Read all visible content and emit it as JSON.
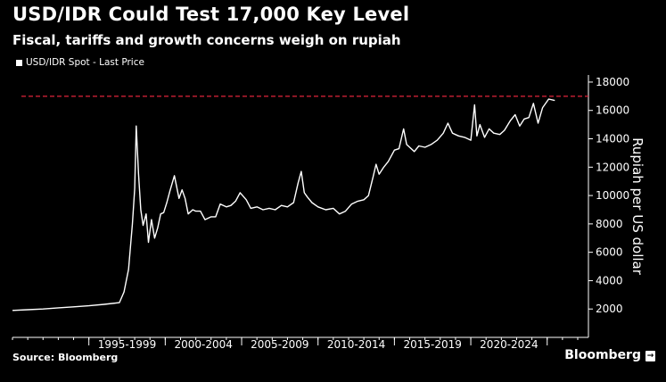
{
  "header": {
    "title": "USD/IDR Could Test 17,000 Key Level",
    "subtitle": "Fiscal, tariffs and growth concerns weigh on rupiah"
  },
  "footer": {
    "source": "Source: Bloomberg",
    "brand": "Bloomberg",
    "badge": "→"
  },
  "colors": {
    "background": "#000000",
    "line": "#ffffff",
    "reference_line": "#e0243a"
  },
  "chart_data": {
    "type": "line",
    "legend": [
      "USD/IDR Spot - Last Price"
    ],
    "ylabel": "Rupiah per US dollar",
    "xlabel": "",
    "ylim": [
      0,
      18500
    ],
    "yticks": [
      2000,
      4000,
      6000,
      8000,
      10000,
      12000,
      14000,
      16000,
      18000
    ],
    "ytick_labels": [
      "2000",
      "4000",
      "6000",
      "8000",
      "10000",
      "12000",
      "14000",
      "16000",
      "18000"
    ],
    "xlim": [
      1990.0,
      2027.7
    ],
    "x_categories": [
      {
        "label": "1995-1999",
        "start": 1995,
        "end": 2000
      },
      {
        "label": "2000-2004",
        "start": 2000,
        "end": 2005
      },
      {
        "label": "2005-2009",
        "start": 2005,
        "end": 2010
      },
      {
        "label": "2010-2014",
        "start": 2010,
        "end": 2015
      },
      {
        "label": "2015-2019",
        "start": 2015,
        "end": 2020
      },
      {
        "label": "2020-2024",
        "start": 2020,
        "end": 2025
      }
    ],
    "reference_line": {
      "y": 17000,
      "style": "dashed"
    },
    "series": [
      {
        "name": "USD/IDR Spot - Last Price",
        "x": [
          1990.0,
          1991.0,
          1992.0,
          1993.0,
          1994.0,
          1995.0,
          1996.0,
          1997.0,
          1997.3,
          1997.6,
          1997.85,
          1998.0,
          1998.1,
          1998.25,
          1998.4,
          1998.55,
          1998.75,
          1998.9,
          1999.1,
          1999.3,
          1999.5,
          1999.7,
          1999.9,
          2000.1,
          2000.3,
          2000.6,
          2000.9,
          2001.1,
          2001.3,
          2001.5,
          2001.8,
          2002.0,
          2002.3,
          2002.6,
          2003.0,
          2003.3,
          2003.6,
          2004.0,
          2004.3,
          2004.6,
          2004.9,
          2005.3,
          2005.6,
          2006.0,
          2006.4,
          2006.8,
          2007.2,
          2007.6,
          2008.0,
          2008.4,
          2008.7,
          2008.9,
          2009.1,
          2009.3,
          2009.6,
          2010.0,
          2010.5,
          2011.0,
          2011.4,
          2011.8,
          2012.2,
          2012.6,
          2013.0,
          2013.3,
          2013.6,
          2013.8,
          2014.0,
          2014.3,
          2014.6,
          2015.0,
          2015.3,
          2015.6,
          2015.8,
          2016.0,
          2016.3,
          2016.6,
          2017.0,
          2017.4,
          2017.8,
          2018.2,
          2018.5,
          2018.8,
          2019.2,
          2019.6,
          2020.0,
          2020.25,
          2020.4,
          2020.6,
          2020.9,
          2021.2,
          2021.5,
          2021.9,
          2022.2,
          2022.6,
          2022.9,
          2023.2,
          2023.5,
          2023.8,
          2024.1,
          2024.4,
          2024.7,
          2025.1,
          2025.5
        ],
        "values": [
          1900,
          1950,
          2000,
          2080,
          2150,
          2230,
          2330,
          2450,
          3200,
          4800,
          8000,
          10500,
          14900,
          11500,
          9000,
          7900,
          8700,
          6700,
          8300,
          7000,
          7700,
          8700,
          8800,
          9500,
          10300,
          11400,
          9800,
          10400,
          9800,
          8700,
          9000,
          8900,
          8900,
          8300,
          8500,
          8500,
          9400,
          9200,
          9300,
          9600,
          10200,
          9700,
          9100,
          9200,
          9000,
          9100,
          9000,
          9300,
          9200,
          9500,
          10900,
          11700,
          10200,
          9900,
          9500,
          9200,
          9000,
          9100,
          8700,
          8900,
          9400,
          9600,
          9700,
          10000,
          11300,
          12200,
          11500,
          12000,
          12400,
          13200,
          13300,
          14700,
          13600,
          13400,
          13100,
          13500,
          13400,
          13600,
          13900,
          14400,
          15100,
          14400,
          14200,
          14100,
          13900,
          16400,
          14200,
          15000,
          14100,
          14700,
          14400,
          14300,
          14600,
          15300,
          15700,
          14900,
          15400,
          15500,
          16500,
          15100,
          16200,
          16800,
          16700
        ]
      }
    ]
  }
}
